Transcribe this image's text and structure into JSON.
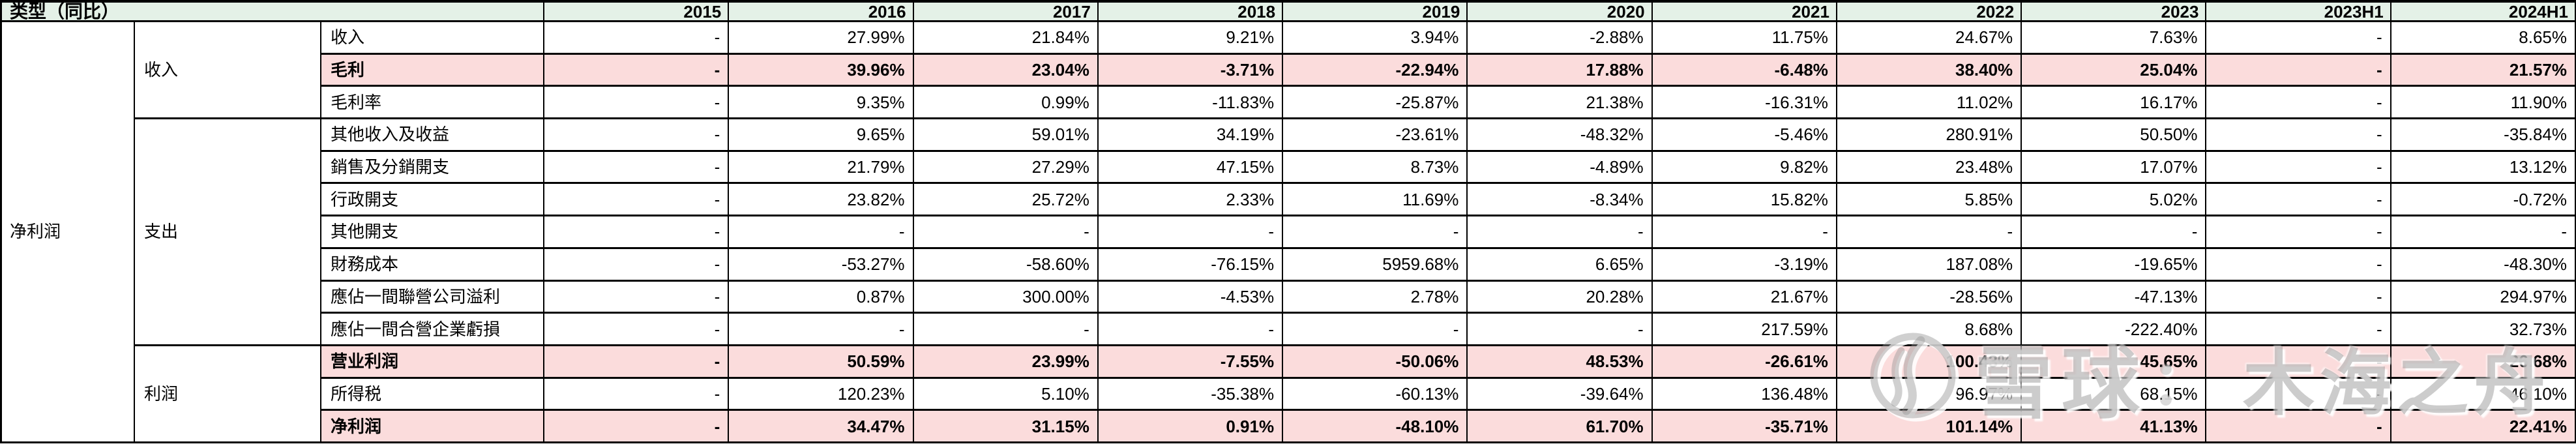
{
  "table": {
    "corner_label": "类型（同比）",
    "outer_label": "净利润",
    "years": [
      "2015",
      "2016",
      "2017",
      "2018",
      "2019",
      "2020",
      "2021",
      "2022",
      "2023",
      "2023H1",
      "2024H1"
    ],
    "groups": [
      {
        "label": "收入",
        "span": 3
      },
      {
        "label": "支出",
        "span": 7
      },
      {
        "label": "利润",
        "span": 3
      }
    ],
    "rows": [
      {
        "label": "收入",
        "highlight": false,
        "values": [
          "-",
          "27.99%",
          "21.84%",
          "9.21%",
          "3.94%",
          "-2.88%",
          "11.75%",
          "24.67%",
          "7.63%",
          "-",
          "8.65%"
        ]
      },
      {
        "label": "毛利",
        "highlight": true,
        "values": [
          "-",
          "39.96%",
          "23.04%",
          "-3.71%",
          "-22.94%",
          "17.88%",
          "-6.48%",
          "38.40%",
          "25.04%",
          "-",
          "21.57%"
        ]
      },
      {
        "label": "毛利率",
        "highlight": false,
        "values": [
          "-",
          "9.35%",
          "0.99%",
          "-11.83%",
          "-25.87%",
          "21.38%",
          "-16.31%",
          "11.02%",
          "16.17%",
          "-",
          "11.90%"
        ]
      },
      {
        "label": "其他收入及收益",
        "highlight": false,
        "values": [
          "-",
          "9.65%",
          "59.01%",
          "34.19%",
          "-23.61%",
          "-48.32%",
          "-5.46%",
          "280.91%",
          "50.50%",
          "-",
          "-35.84%"
        ]
      },
      {
        "label": "銷售及分銷開支",
        "highlight": false,
        "values": [
          "-",
          "21.79%",
          "27.29%",
          "47.15%",
          "8.73%",
          "-4.89%",
          "9.82%",
          "23.48%",
          "17.07%",
          "-",
          "13.12%"
        ]
      },
      {
        "label": "行政開支",
        "highlight": false,
        "values": [
          "-",
          "23.82%",
          "25.72%",
          "2.33%",
          "11.69%",
          "-8.34%",
          "15.82%",
          "5.85%",
          "5.02%",
          "-",
          "-0.72%"
        ]
      },
      {
        "label": "其他開支",
        "highlight": false,
        "values": [
          "-",
          "-",
          "-",
          "-",
          "-",
          "-",
          "-",
          "-",
          "-",
          "-",
          "-"
        ]
      },
      {
        "label": "財務成本",
        "highlight": false,
        "values": [
          "-",
          "-53.27%",
          "-58.60%",
          "-76.15%",
          "5959.68%",
          "6.65%",
          "-3.19%",
          "187.08%",
          "-19.65%",
          "-",
          "-48.30%"
        ]
      },
      {
        "label": "應佔一間聯營公司溢利",
        "highlight": false,
        "values": [
          "-",
          "0.87%",
          "300.00%",
          "-4.53%",
          "2.78%",
          "20.28%",
          "21.67%",
          "-28.56%",
          "-47.13%",
          "-",
          "294.97%"
        ]
      },
      {
        "label": "應佔一間合營企業虧損",
        "highlight": false,
        "values": [
          "-",
          "-",
          "-",
          "-",
          "-",
          "-",
          "217.59%",
          "8.68%",
          "-222.40%",
          "-",
          "32.73%"
        ]
      },
      {
        "label": "营业利润",
        "highlight": true,
        "values": [
          "-",
          "50.59%",
          "23.99%",
          "-7.55%",
          "-50.06%",
          "48.53%",
          "-26.61%",
          "100.43%",
          "45.65%",
          "-",
          "26.68%"
        ]
      },
      {
        "label": "所得税",
        "highlight": false,
        "values": [
          "-",
          "120.23%",
          "5.10%",
          "-35.38%",
          "-60.13%",
          "-39.64%",
          "136.48%",
          "96.97%",
          "68.15%",
          "-",
          "46.10%"
        ]
      },
      {
        "label": "净利润",
        "highlight": true,
        "values": [
          "-",
          "34.47%",
          "31.15%",
          "0.91%",
          "-48.10%",
          "61.70%",
          "-35.71%",
          "101.14%",
          "41.13%",
          "-",
          "22.41%"
        ]
      }
    ]
  },
  "watermark": {
    "logo": "xueqiu-snowball-logo",
    "brand": "雪球",
    "separator": "：",
    "username": "木海之舟"
  },
  "colors": {
    "header_bg": "#e4f1e7",
    "highlight_bg": "#fbdcdc",
    "border": "#000000",
    "watermark_gray": "#8c8c8c"
  }
}
